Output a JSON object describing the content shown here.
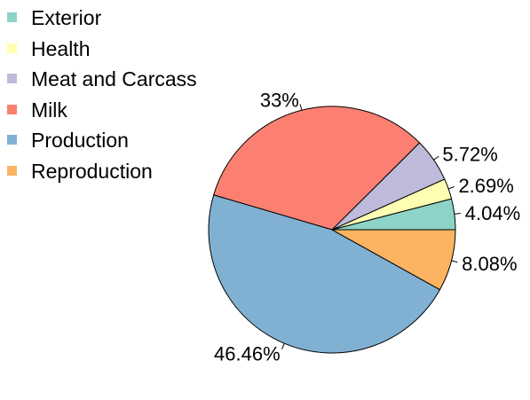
{
  "chart_data": {
    "type": "pie",
    "legend_position": "top-left",
    "slices": [
      {
        "label": "Exterior",
        "value": 4.04,
        "value_label": "4.04%",
        "color": "#8dd3c7"
      },
      {
        "label": "Health",
        "value": 2.69,
        "value_label": "2.69%",
        "color": "#ffffb3"
      },
      {
        "label": "Meat and Carcass",
        "value": 5.72,
        "value_label": "5.72%",
        "color": "#bebada"
      },
      {
        "label": "Milk",
        "value": 33,
        "value_label": "33%",
        "color": "#fb8072"
      },
      {
        "label": "Production",
        "value": 46.46,
        "value_label": "46.46%",
        "color": "#80b1d3"
      },
      {
        "label": "Reproduction",
        "value": 8.08,
        "value_label": "8.08%",
        "color": "#fdb462"
      }
    ]
  }
}
